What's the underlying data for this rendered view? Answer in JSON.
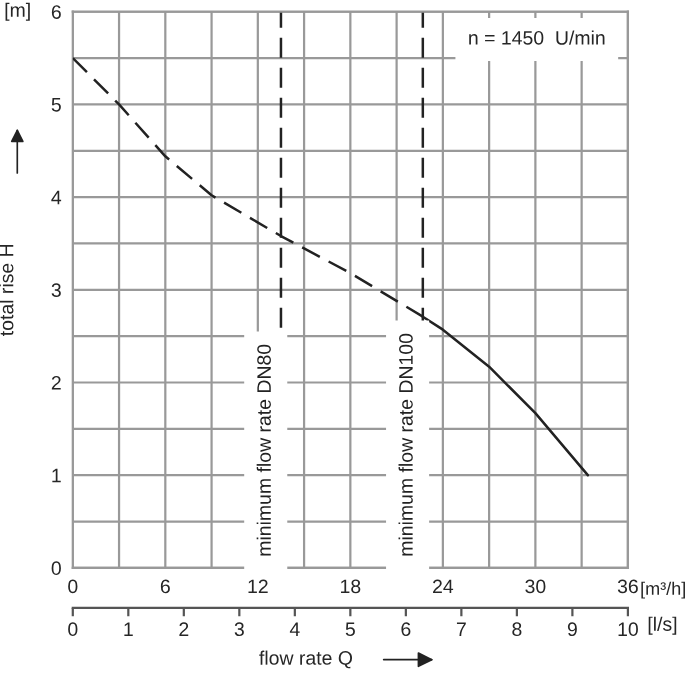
{
  "chart_data": {
    "type": "line",
    "ylabel": "total rise H",
    "xlabel": "[m³/h]",
    "x2label": "flow rate Q",
    "annotations": [
      "[m]",
      "[l/s]",
      "n = 1450  U/min"
    ],
    "series": [
      {
        "color": "#222222",
        "line_style": "dashed",
        "x": [
          0,
          3,
          6,
          9,
          13.5,
          18,
          22.7
        ],
        "values": [
          5.5,
          5.0,
          4.44,
          4.02,
          3.58,
          3.18,
          2.71
        ]
      },
      {
        "color": "#222222",
        "line_style": "solid",
        "x": [
          22.7,
          24,
          27,
          30,
          33.4
        ],
        "values": [
          2.71,
          2.57,
          2.17,
          1.67,
          1.0
        ]
      }
    ],
    "xlim": [
      0,
      36
    ],
    "ylim": [
      0,
      6
    ],
    "xticks": [
      0,
      {
        "value": 3,
        "label": null
      },
      6,
      {
        "value": 9,
        "label": null
      },
      12,
      {
        "value": 15,
        "label": null
      },
      18,
      {
        "value": 21,
        "label": null
      },
      24,
      {
        "value": 27,
        "label": null
      },
      30,
      {
        "value": 33,
        "label": null
      },
      36
    ],
    "yticks": [
      0,
      {
        "value": 0.5,
        "label": null
      },
      1,
      {
        "value": 1.5,
        "label": null
      },
      2,
      {
        "value": 2.5,
        "label": null
      },
      3,
      {
        "value": 3.5,
        "label": null
      },
      4,
      {
        "value": 4.5,
        "label": null
      },
      5,
      {
        "value": 5.5,
        "label": null
      },
      6
    ],
    "x2lim": [
      0,
      10
    ],
    "x2ticks": [
      0,
      1,
      2,
      3,
      4,
      5,
      6,
      7,
      8,
      9,
      10
    ],
    "ref_lines": [
      {
        "axis": "x",
        "value": 13.5,
        "label": "minimum flow rate DN80",
        "line_style": "dashed",
        "color": "#222222"
      },
      {
        "axis": "x",
        "value": 22.7,
        "label": "minimum flow rate DN100",
        "line_style": "dashed",
        "color": "#222222"
      }
    ],
    "grid": true,
    "marker": "none"
  }
}
